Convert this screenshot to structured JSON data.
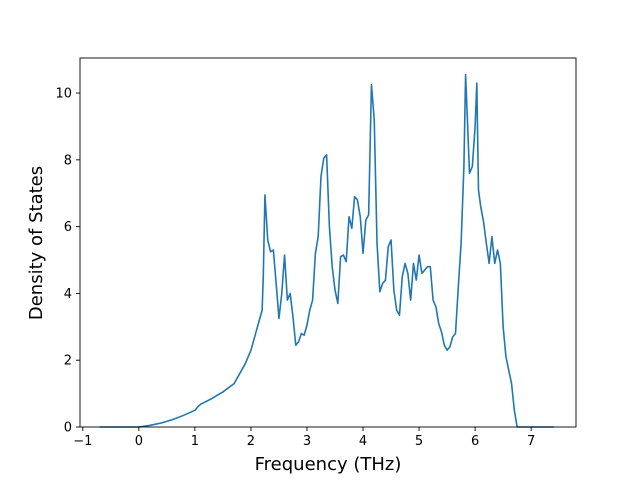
{
  "chart_data": {
    "type": "line",
    "title": "",
    "xlabel": "Frequency (THz)",
    "ylabel": "Density of States",
    "xlim": [
      -1.05,
      7.8
    ],
    "ylim": [
      0,
      11.05
    ],
    "xticks": [
      -1,
      0,
      1,
      2,
      3,
      4,
      5,
      6,
      7
    ],
    "yticks": [
      0,
      2,
      4,
      6,
      8,
      10
    ],
    "grid": false,
    "series_color": "#1f77b4",
    "series": [
      {
        "x": [
          -0.7,
          -0.4,
          0.0,
          0.2,
          0.4,
          0.6,
          0.8,
          1.0,
          1.05,
          1.1,
          1.15,
          1.3,
          1.5,
          1.7,
          1.8,
          1.9,
          2.0,
          2.1,
          2.15,
          2.2,
          2.22,
          2.25,
          2.3,
          2.35,
          2.4,
          2.45,
          2.5,
          2.55,
          2.6,
          2.65,
          2.7,
          2.75,
          2.8,
          2.85,
          2.9,
          2.95,
          3.0,
          3.05,
          3.1,
          3.15,
          3.2,
          3.25,
          3.3,
          3.35,
          3.4,
          3.45,
          3.5,
          3.55,
          3.6,
          3.65,
          3.7,
          3.75,
          3.8,
          3.85,
          3.9,
          3.95,
          4.0,
          4.05,
          4.1,
          4.15,
          4.2,
          4.25,
          4.3,
          4.35,
          4.4,
          4.45,
          4.5,
          4.55,
          4.6,
          4.65,
          4.7,
          4.75,
          4.8,
          4.85,
          4.9,
          4.95,
          5.0,
          5.05,
          5.1,
          5.15,
          5.2,
          5.25,
          5.3,
          5.35,
          5.4,
          5.45,
          5.5,
          5.55,
          5.6,
          5.65,
          5.7,
          5.75,
          5.8,
          5.83,
          5.86,
          5.9,
          5.95,
          6.0,
          6.03,
          6.06,
          6.1,
          6.15,
          6.2,
          6.25,
          6.3,
          6.35,
          6.4,
          6.45,
          6.5,
          6.55,
          6.6,
          6.65,
          6.7,
          6.75,
          6.8,
          7.0,
          7.4
        ],
        "values": [
          0.0,
          0.0,
          0.0,
          0.05,
          0.12,
          0.22,
          0.35,
          0.5,
          0.6,
          0.68,
          0.72,
          0.85,
          1.05,
          1.3,
          1.6,
          1.9,
          2.3,
          2.9,
          3.2,
          3.5,
          4.5,
          6.95,
          5.6,
          5.25,
          5.3,
          4.3,
          3.25,
          4.0,
          5.15,
          3.8,
          4.0,
          3.3,
          2.45,
          2.55,
          2.8,
          2.75,
          3.05,
          3.5,
          3.8,
          5.2,
          5.7,
          7.5,
          8.05,
          8.15,
          6.0,
          4.8,
          4.1,
          3.7,
          5.1,
          5.15,
          4.95,
          6.3,
          5.95,
          6.9,
          6.8,
          6.3,
          5.2,
          6.2,
          6.35,
          10.25,
          9.2,
          5.5,
          4.05,
          4.3,
          4.4,
          5.4,
          5.6,
          4.1,
          3.5,
          3.35,
          4.5,
          4.9,
          4.6,
          3.8,
          4.9,
          4.4,
          5.15,
          4.6,
          4.7,
          4.8,
          4.8,
          3.8,
          3.6,
          3.1,
          2.85,
          2.45,
          2.3,
          2.4,
          2.7,
          2.8,
          4.2,
          5.5,
          7.8,
          10.55,
          9.3,
          7.6,
          7.8,
          9.0,
          10.3,
          7.1,
          6.6,
          6.15,
          5.5,
          4.9,
          5.7,
          4.9,
          5.3,
          4.9,
          3.0,
          2.1,
          1.7,
          1.3,
          0.5,
          0.0,
          0.0,
          0.0,
          0.0
        ]
      }
    ]
  }
}
